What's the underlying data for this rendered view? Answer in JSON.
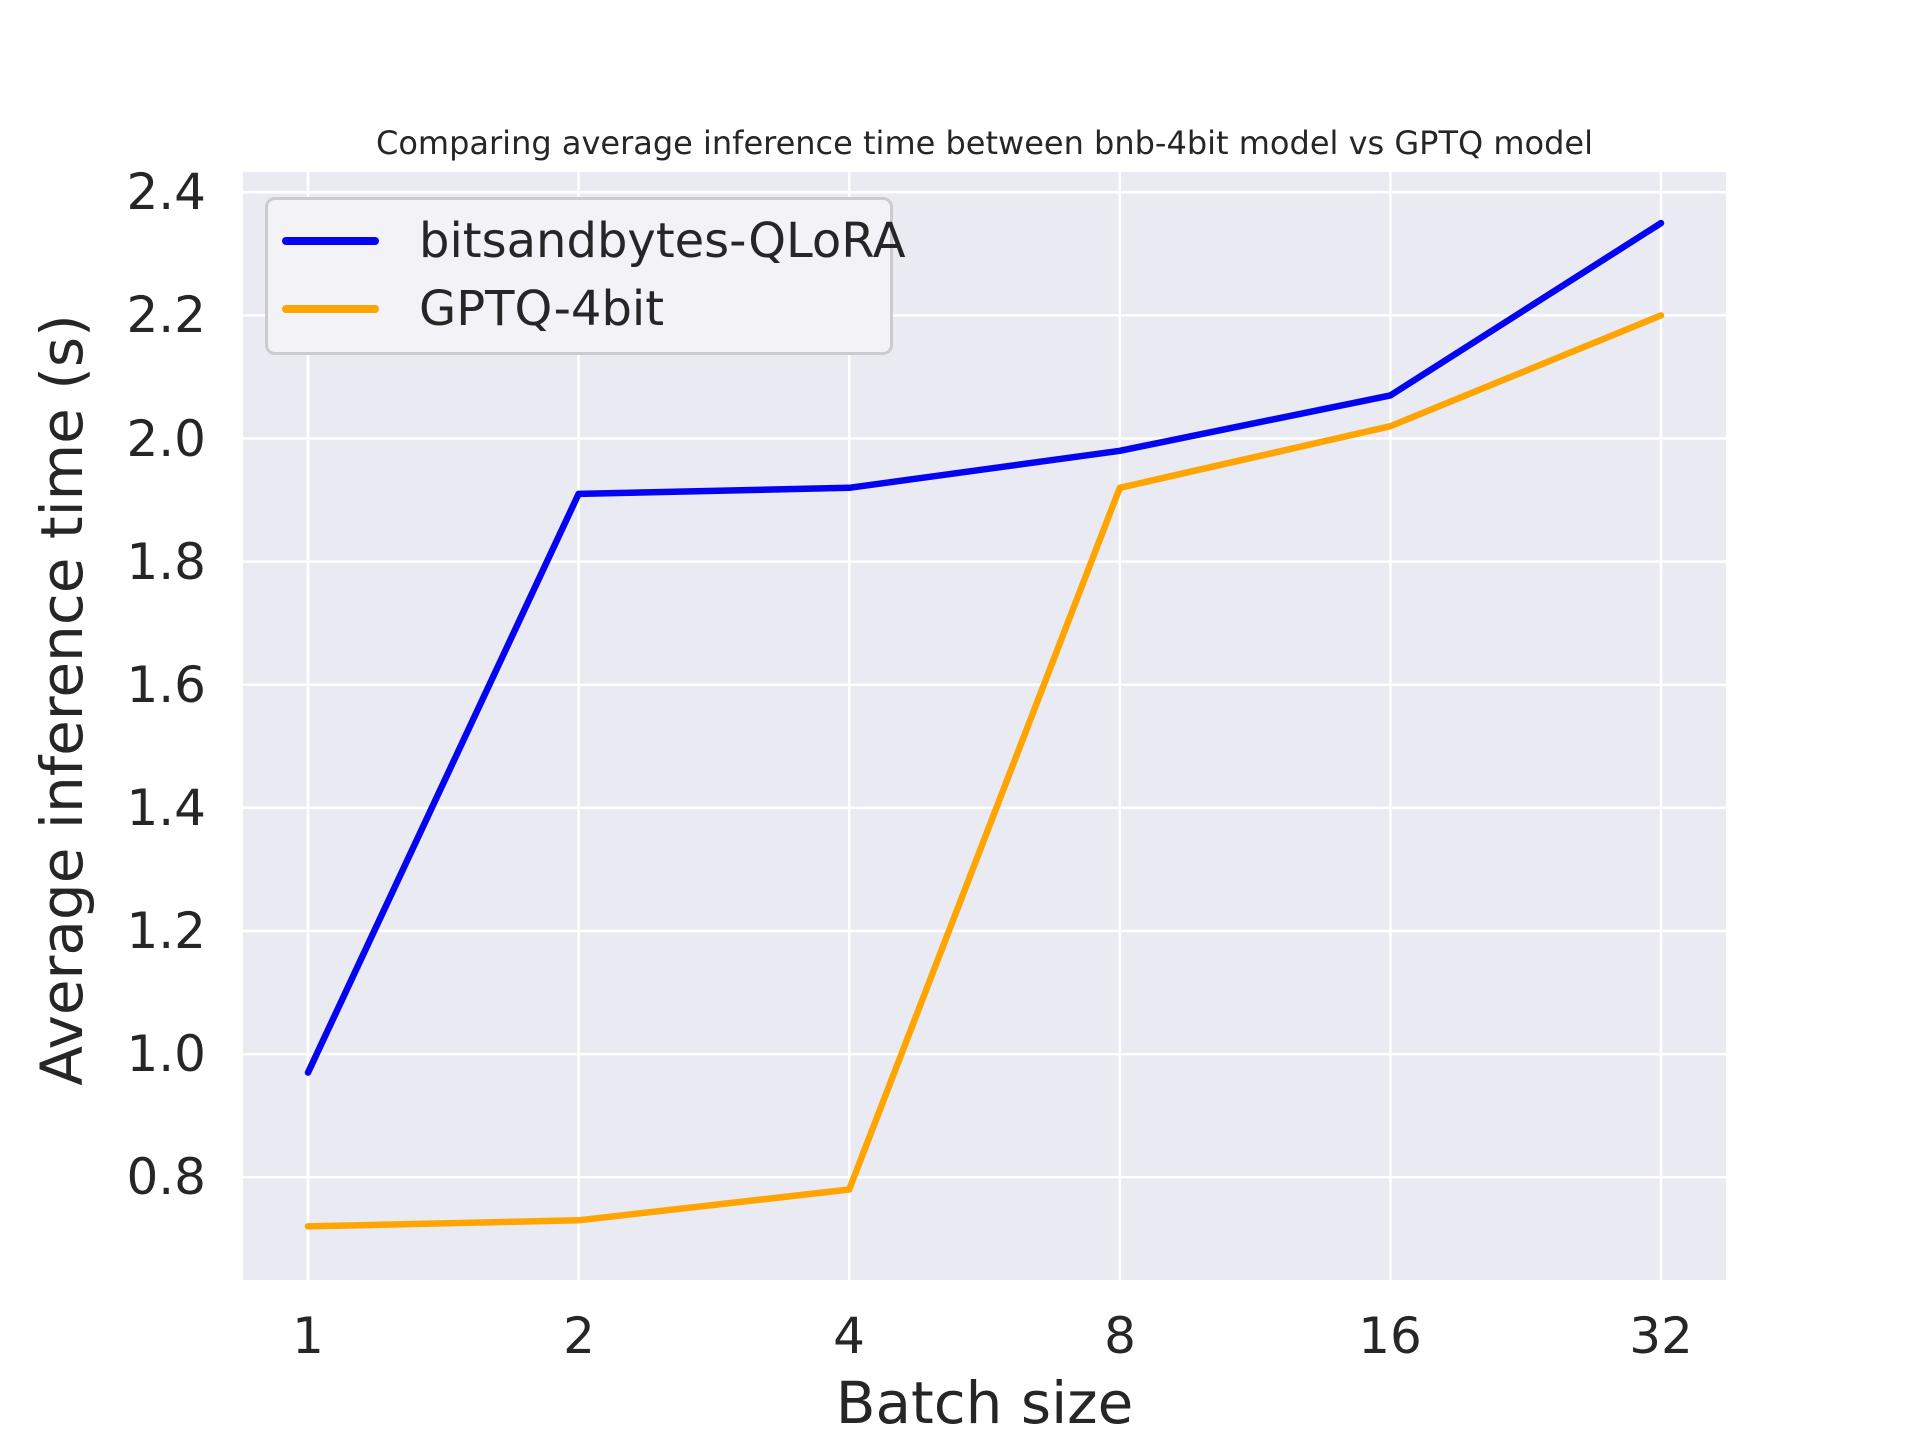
{
  "chart_data": {
    "type": "line",
    "title": "Comparing average inference time between bnb-4bit model vs GPTQ model",
    "xlabel": "Batch size",
    "ylabel": "Average inference time (s)",
    "categories": [
      1,
      2,
      4,
      8,
      16,
      32
    ],
    "x_tick_labels": [
      "1",
      "2",
      "4",
      "8",
      "16",
      "32"
    ],
    "x_scale": "log2",
    "y_ticks": [
      0.8,
      1.0,
      1.2,
      1.4,
      1.6,
      1.8,
      2.0,
      2.2,
      2.4
    ],
    "ylim": [
      0.633,
      2.433
    ],
    "grid": true,
    "legend_position": "upper left",
    "series": [
      {
        "name": "bitsandbytes-QLoRA",
        "color": "#0404f2",
        "values": [
          0.97,
          1.91,
          1.92,
          1.98,
          2.07,
          2.35
        ]
      },
      {
        "name": "GPTQ-4bit",
        "color": "#ffa503",
        "values": [
          0.72,
          0.73,
          0.78,
          1.92,
          2.02,
          2.2
        ]
      }
    ],
    "style": {
      "plot_bg": "#eaeaf2",
      "grid_color": "#ffffff",
      "text_color": "#262626",
      "legend_bg": "#f2f2f7",
      "legend_border": "#cbcbd0"
    }
  }
}
